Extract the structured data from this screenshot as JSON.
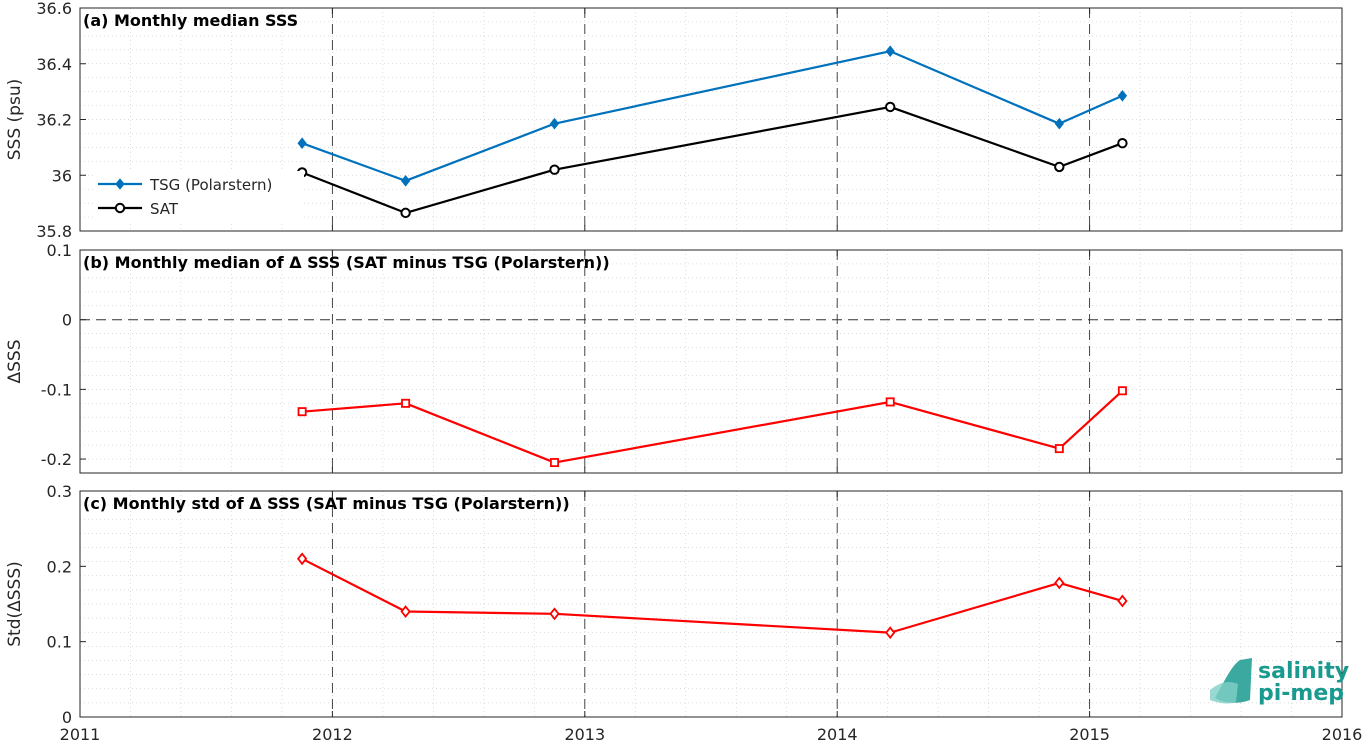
{
  "chart_data": [
    {
      "type": "line",
      "title": "(a) Monthly median SSS",
      "xlabel": "",
      "ylabel": "SSS (psu)",
      "xlim": [
        2011,
        2016
      ],
      "ylim": [
        35.8,
        36.6
      ],
      "yticks": [
        "35.8",
        "36",
        "36.2",
        "36.4",
        "36.6"
      ],
      "grid": true,
      "legend_position": "left",
      "series": [
        {
          "name": "TSG (Polarstern)",
          "color": "#0072bd",
          "marker": "diamond-filled",
          "x": [
            2011.88,
            2012.29,
            2012.88,
            2014.21,
            2014.88,
            2015.13
          ],
          "y": [
            36.115,
            35.98,
            36.185,
            36.445,
            36.185,
            36.285
          ]
        },
        {
          "name": "SAT",
          "color": "#000000",
          "marker": "circle",
          "x": [
            2011.88,
            2012.29,
            2012.88,
            2014.21,
            2014.88,
            2015.13
          ],
          "y": [
            36.01,
            35.865,
            36.02,
            36.245,
            36.03,
            36.115
          ]
        }
      ]
    },
    {
      "type": "line",
      "title": "(b) Monthly median of Δ SSS (SAT minus TSG (Polarstern))",
      "xlabel": "",
      "ylabel": "ΔSSS",
      "xlim": [
        2011,
        2016
      ],
      "ylim": [
        -0.22,
        0.1
      ],
      "yticks": [
        "-0.2",
        "-0.1",
        "0",
        "0.1"
      ],
      "zero_line": true,
      "grid": true,
      "series": [
        {
          "color": "#ff0000",
          "marker": "square",
          "x": [
            2011.88,
            2012.29,
            2012.88,
            2014.21,
            2014.88,
            2015.13
          ],
          "y": [
            -0.132,
            -0.12,
            -0.205,
            -0.118,
            -0.185,
            -0.102
          ]
        }
      ]
    },
    {
      "type": "line",
      "title": "(c) Monthly std of Δ SSS (SAT minus TSG (Polarstern))",
      "xlabel": "",
      "ylabel": "Std(ΔSSS)",
      "xlim": [
        2011,
        2016
      ],
      "ylim": [
        0,
        0.3
      ],
      "yticks": [
        "0",
        "0.1",
        "0.2",
        "0.3"
      ],
      "xticks": [
        "2011",
        "2012",
        "2013",
        "2014",
        "2015",
        "2016"
      ],
      "grid": true,
      "series": [
        {
          "color": "#ff0000",
          "marker": "diamond",
          "x": [
            2011.88,
            2012.29,
            2012.88,
            2014.21,
            2014.88,
            2015.13
          ],
          "y": [
            0.21,
            0.14,
            0.137,
            0.112,
            0.178,
            0.154
          ]
        }
      ]
    }
  ],
  "logo": {
    "line1": "salinity",
    "line2": "pi-mep",
    "color": "#1a9a8f"
  }
}
